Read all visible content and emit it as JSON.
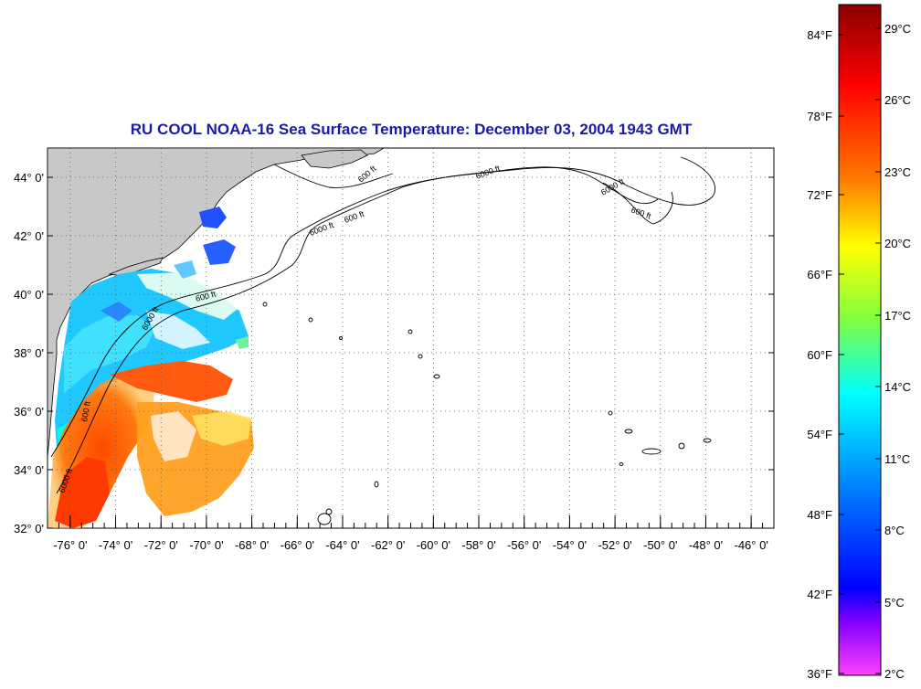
{
  "title": "RU COOL  NOAA-16  Sea Surface Temperature:  December 03, 2004 1943 GMT",
  "map": {
    "lat_labels": [
      "44° 0'",
      "42° 0'",
      "40° 0'",
      "38° 0'",
      "36° 0'",
      "34° 0'",
      "32° 0'"
    ],
    "lon_labels": [
      "-76° 0'",
      "-74° 0'",
      "-72° 0'",
      "-70° 0'",
      "-68° 0'",
      "-66° 0'",
      "-64° 0'",
      "-62° 0'",
      "-60° 0'",
      "-58° 0'",
      "-56° 0'",
      "-54° 0'",
      "-52° 0'",
      "-50° 0'",
      "-48° 0'",
      "-46° 0'"
    ],
    "contour_labels": [
      "600 ft",
      "6000 ft",
      "600 ft",
      "6000 ft",
      "600 ft",
      "600 ft",
      "6000 ft",
      "6000 ft",
      "600 ft",
      "6000 ft"
    ],
    "land_color": "#c8c8c8",
    "extent": {
      "lon": [
        -77,
        -45
      ],
      "lat": [
        32,
        45
      ]
    }
  },
  "colorbar": {
    "fahrenheit": [
      "84°F",
      "78°F",
      "72°F",
      "66°F",
      "60°F",
      "54°F",
      "48°F",
      "42°F",
      "36°F"
    ],
    "celsius": [
      "29°C",
      "26°C",
      "23°C",
      "20°C",
      "17°C",
      "14°C",
      "11°C",
      "8°C",
      "5°C",
      "2°C"
    ],
    "colors_top_to_bottom": [
      "#8b0000",
      "#ff0000",
      "#ff8000",
      "#ffff00",
      "#80ff40",
      "#00ffff",
      "#0080ff",
      "#0000ff",
      "#8000ff",
      "#ff40ff"
    ]
  }
}
